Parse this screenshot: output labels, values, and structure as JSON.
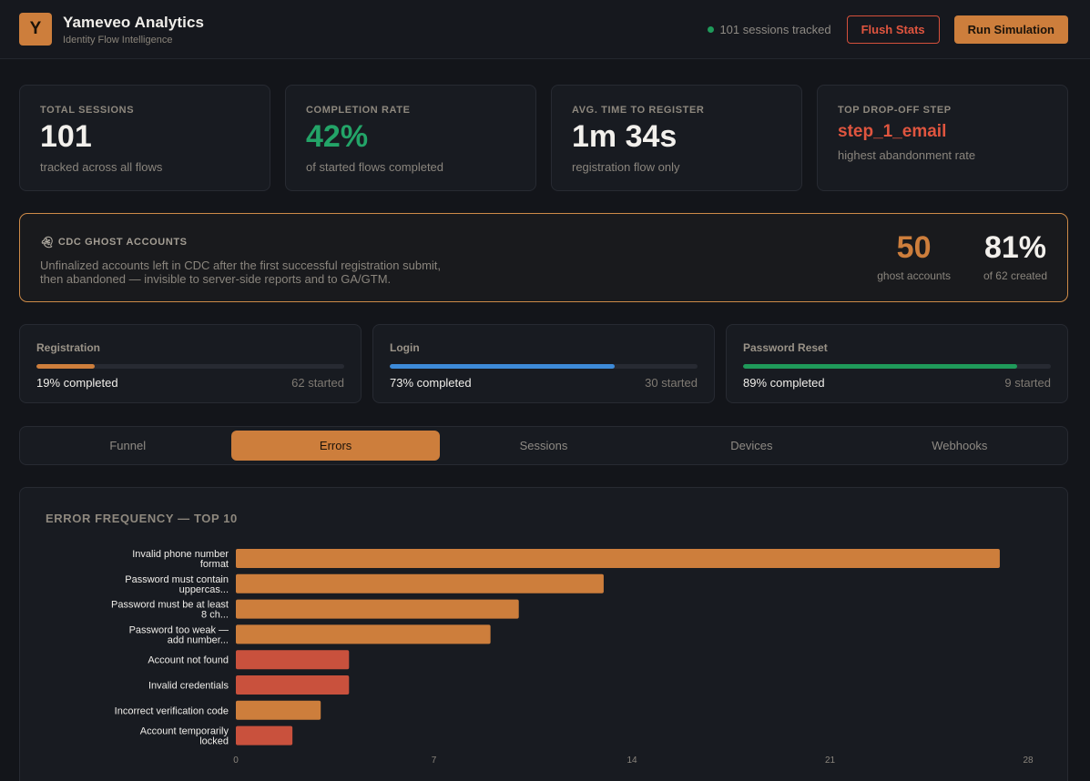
{
  "header": {
    "logo_letter": "Y",
    "title": "Yameveo Analytics",
    "subtitle": "Identity Flow Intelligence",
    "sessions_tracked": "101 sessions tracked",
    "flush_label": "Flush Stats",
    "run_label": "Run Simulation"
  },
  "kpis": [
    {
      "label": "TOTAL SESSIONS",
      "value": "101",
      "sub": "tracked across all flows"
    },
    {
      "label": "COMPLETION RATE",
      "value": "42%",
      "sub": "of started flows completed"
    },
    {
      "label": "AVG. TIME TO REGISTER",
      "value": "1m 34s",
      "sub": "registration flow only"
    },
    {
      "label": "TOP DROP-OFF STEP",
      "value": "step_1_email",
      "sub": "highest abandonment rate"
    }
  ],
  "ghost": {
    "icon": "ghost-icon",
    "label": "CDC GHOST ACCOUNTS",
    "desc_line1": "Unfinalized accounts left in CDC after the first successful registration submit,",
    "desc_line2": "then abandoned — invisible to server-side reports and to GA/GTM.",
    "count": "50",
    "count_label": "ghost accounts",
    "percent": "81%",
    "percent_label": "of 62 created"
  },
  "flows": [
    {
      "name": "Registration",
      "completed": "19% completed",
      "started": "62 started",
      "progress": 0.19,
      "color": "#cd7e3c"
    },
    {
      "name": "Login",
      "completed": "73% completed",
      "started": "30 started",
      "progress": 0.73,
      "color": "#3d8ad8"
    },
    {
      "name": "Password Reset",
      "completed": "89% completed",
      "started": "9 started",
      "progress": 0.89,
      "color": "#1f9a5a"
    }
  ],
  "tabs": [
    {
      "label": "Funnel",
      "active": false
    },
    {
      "label": "Errors",
      "active": true
    },
    {
      "label": "Sessions",
      "active": false
    },
    {
      "label": "Devices",
      "active": false
    },
    {
      "label": "Webhooks",
      "active": false
    }
  ],
  "chart_title": "ERROR FREQUENCY — TOP 10",
  "chart_data": {
    "type": "bar",
    "orientation": "horizontal",
    "title": "ERROR FREQUENCY — TOP 10",
    "categories": [
      [
        "Invalid phone number",
        "format"
      ],
      [
        "Password must contain",
        "uppercas..."
      ],
      [
        "Password must be at least",
        "8 ch..."
      ],
      [
        "Password too weak —",
        "add number..."
      ],
      [
        "Account not found"
      ],
      [
        "Invalid credentials"
      ],
      [
        "Incorrect verification code"
      ],
      [
        "Account temporarily",
        "locked"
      ]
    ],
    "values": [
      27,
      13,
      10,
      9,
      4,
      4,
      3,
      2
    ],
    "colors": [
      "#cd7e3c",
      "#cd7e3c",
      "#cd7e3c",
      "#cd7e3c",
      "#c9513d",
      "#c9513d",
      "#cd7e3c",
      "#c9513d"
    ],
    "xticks": [
      0,
      7,
      14,
      21,
      28
    ],
    "xlim": [
      0,
      28
    ],
    "grid": false
  }
}
